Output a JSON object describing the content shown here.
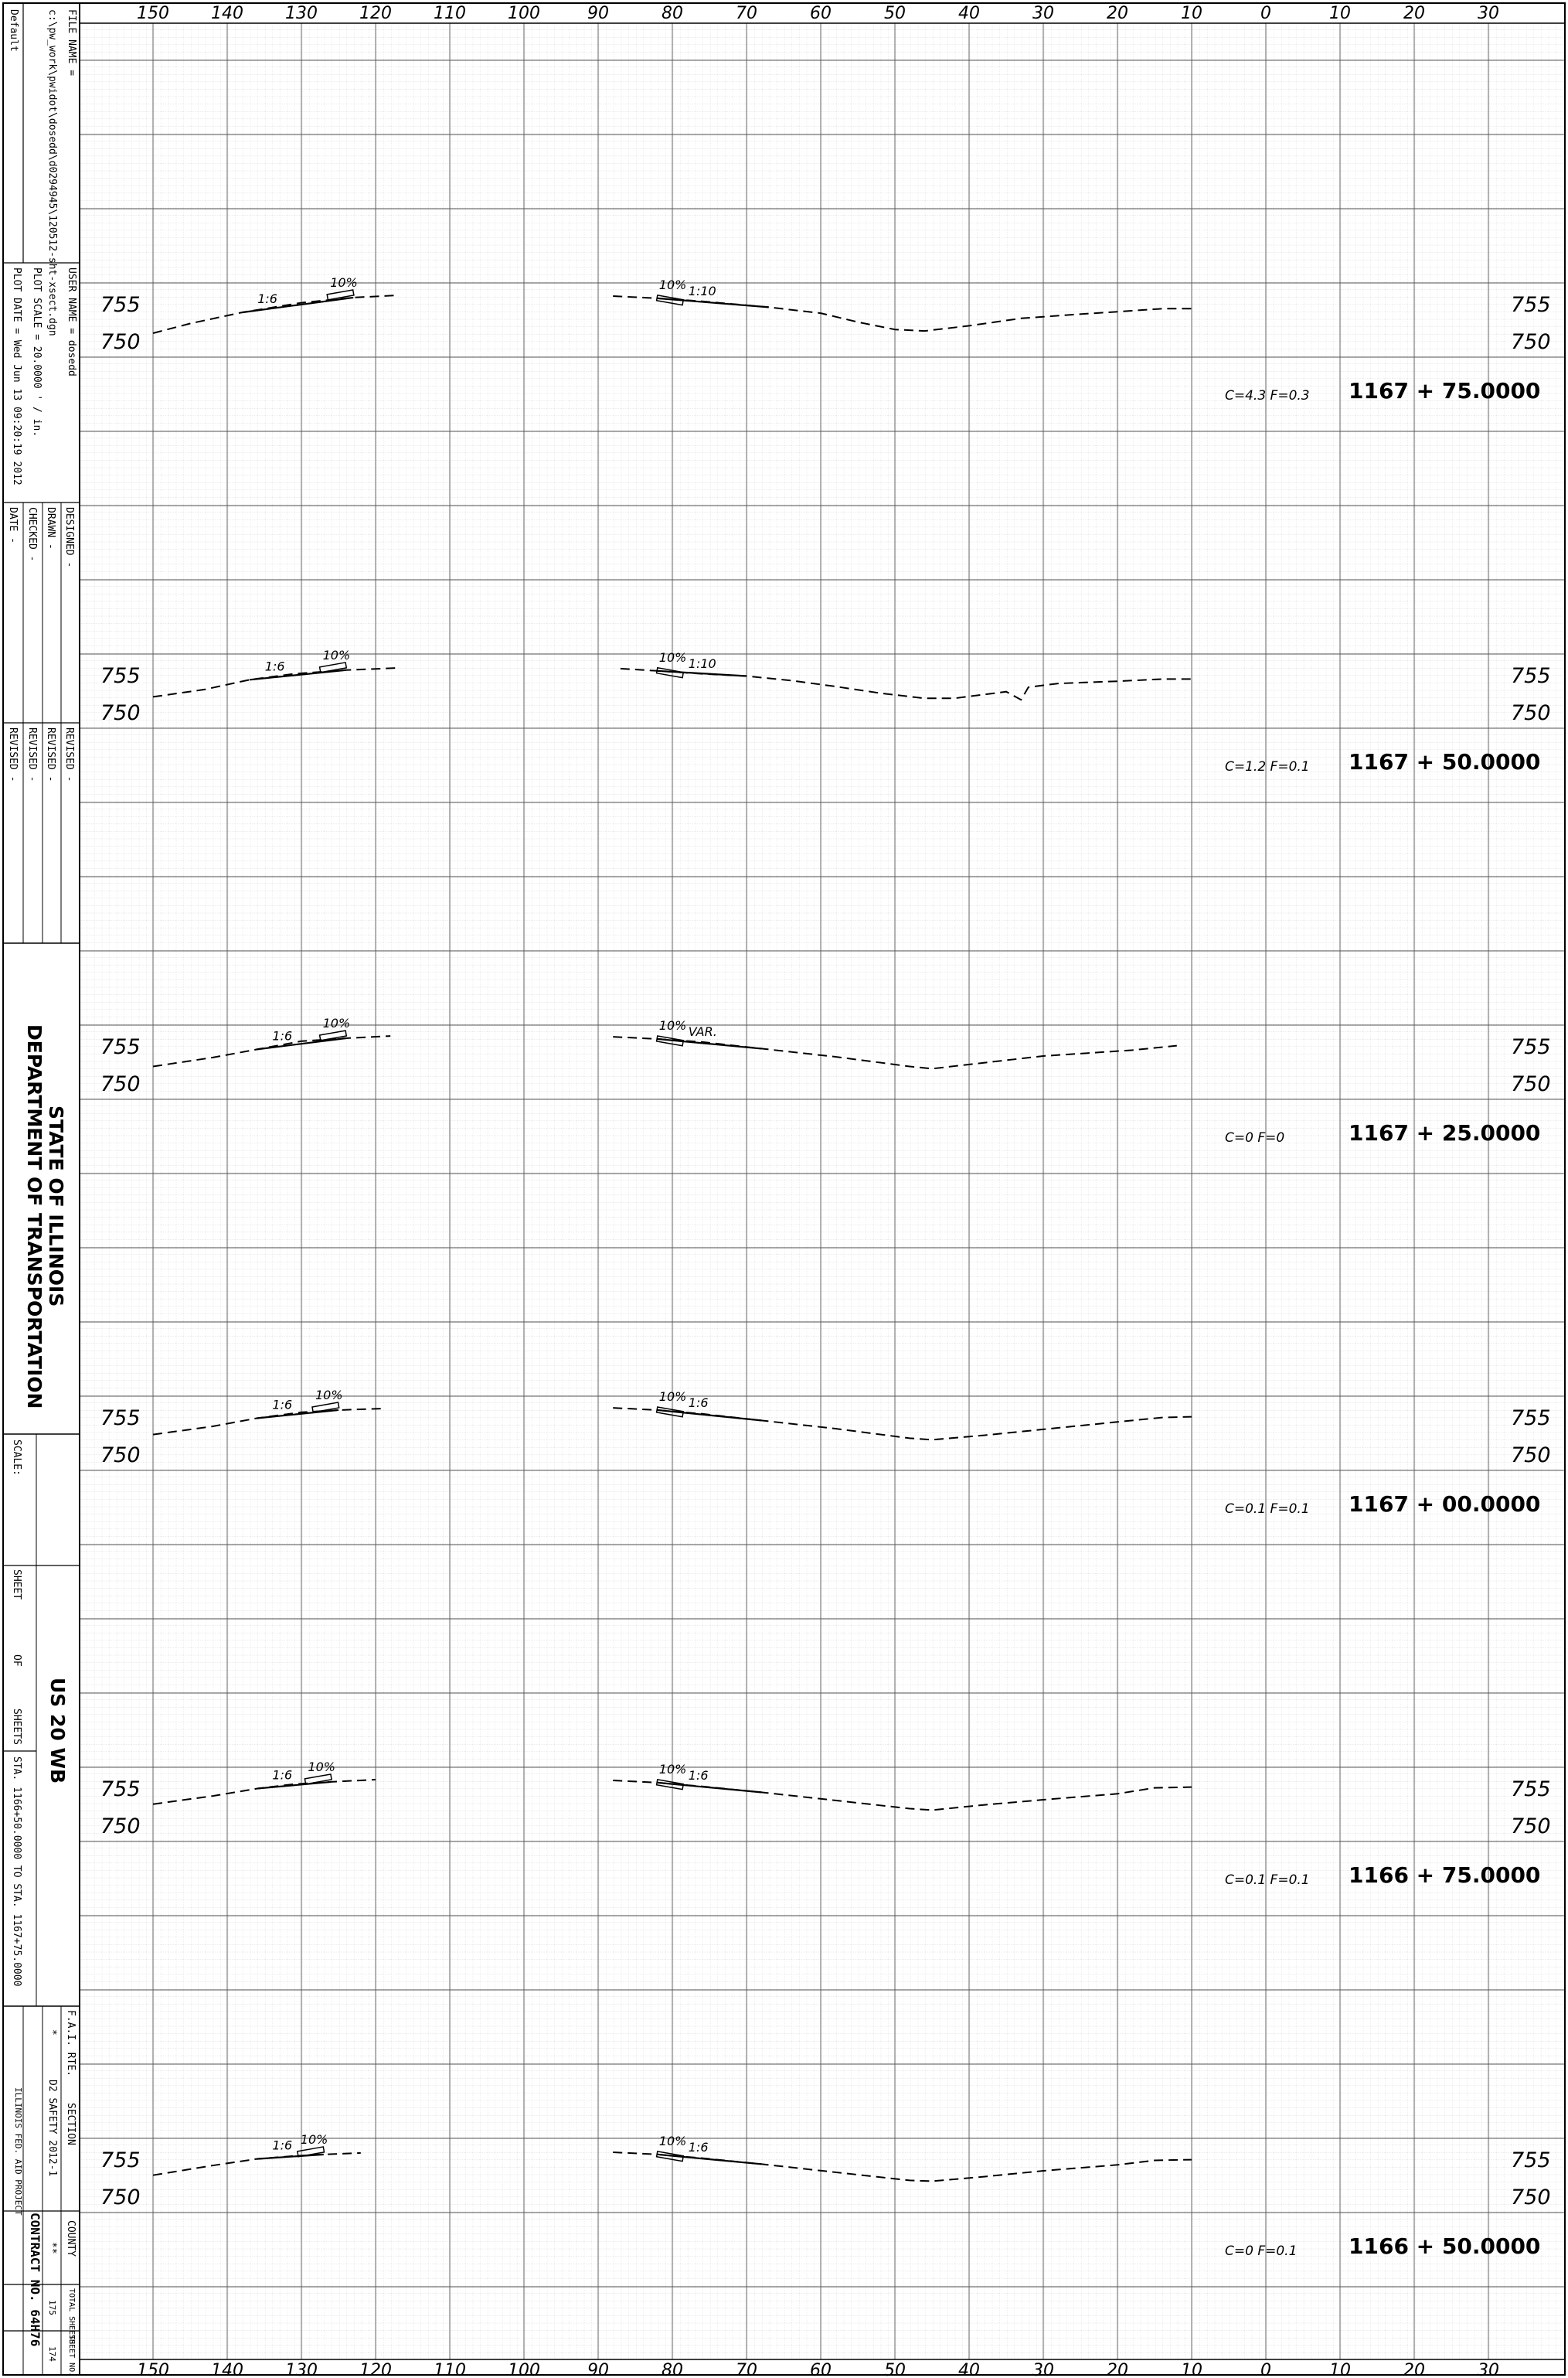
{
  "title_block": {
    "file_name_label": "FILE NAME =",
    "file_name_value": "c:\\pw_work\\pwidot\\dosedd\\d0294945\\120512-sht-xsect.dgn",
    "user_name_label": "USER NAME = dosedd",
    "plot_scale_label": "PLOT SCALE = 20.0000 ' / in.",
    "plot_date_label": "PLOT DATE = Wed Jun 13 09:20:19 2012",
    "default_label": "Default",
    "designed_label": "DESIGNED -",
    "drawn_label": "DRAWN -",
    "checked_label": "CHECKED -",
    "date_label": "DATE -",
    "revised_labels": [
      "REVISED -",
      "REVISED -",
      "REVISED -",
      "REVISED -"
    ],
    "agency_line1": "STATE OF ILLINOIS",
    "agency_line2": "DEPARTMENT OF TRANSPORTATION",
    "scale_label": "SCALE:",
    "sheet_label": "SHEET",
    "of_label": "OF",
    "sheets_label": "SHEETS",
    "sta_range": "STA. 1166+50.0000 TO STA. 1167+75.0000",
    "route_title": "US 20 WB",
    "fa_rte_label": "F.A.I. RTE.",
    "fa_rte_value": "*",
    "section_label": "SECTION",
    "section_value": "D2 SAFETY 2012-1",
    "county_label": "COUNTY",
    "county_value": "**",
    "total_sheets_label": "TOTAL SHEETS",
    "total_sheets_value": "175",
    "sheet_no_label": "SHEET NO.",
    "sheet_no_value": "174",
    "contract_label": "CONTRACT NO. 64H76",
    "project_label": "ILLINOIS FED. AID PROJECT"
  },
  "axis": {
    "ticks": [
      "150",
      "140",
      "130",
      "120",
      "110",
      "100",
      "90",
      "80",
      "70",
      "60",
      "50",
      "40",
      "30",
      "20",
      "10",
      "0",
      "10",
      "20",
      "30"
    ]
  },
  "chart_data": {
    "type": "line",
    "x_range": [
      -150,
      30
    ],
    "x_direction": "left offsets shown on the left, right offsets on the right of centerline 0",
    "sections": [
      {
        "station": "1167+75.0000",
        "cut_fill": "C=4.3   F=0.3",
        "elev_labels": [
          "755",
          "750"
        ],
        "left_slope_labels": [
          "1:6",
          "10%"
        ],
        "right_slope_labels": [
          "10%",
          "1:10"
        ],
        "left_profile": [
          [
            -150,
            752.5
          ],
          [
            -145,
            753.8
          ],
          [
            -138,
            755.3
          ],
          [
            -130,
            756.6
          ],
          [
            -123,
            757.3
          ],
          [
            -117,
            757.6
          ]
        ],
        "right_profile": [
          [
            -88,
            757.5
          ],
          [
            -82,
            757.2
          ],
          [
            -76,
            756.8
          ],
          [
            -67,
            756.0
          ],
          [
            -60,
            755.2
          ],
          [
            -55,
            754.0
          ],
          [
            -50,
            753.0
          ],
          [
            -46,
            752.8
          ],
          [
            -40,
            753.5
          ],
          [
            -33,
            754.5
          ],
          [
            -26,
            755.0
          ],
          [
            -20,
            755.4
          ],
          [
            -14,
            755.8
          ],
          [
            -10,
            755.8
          ]
        ]
      },
      {
        "station": "1167+50.0000",
        "cut_fill": "C=1.2   F=0.1",
        "elev_labels": [
          "755",
          "750"
        ],
        "left_slope_labels": [
          "1:6",
          "10%"
        ],
        "right_slope_labels": [
          "10%",
          "1:10"
        ],
        "left_profile": [
          [
            -150,
            753.5
          ],
          [
            -143,
            754.5
          ],
          [
            -137,
            755.8
          ],
          [
            -131,
            756.6
          ],
          [
            -124,
            757.1
          ],
          [
            -117,
            757.4
          ]
        ],
        "right_profile": [
          [
            -87,
            757.3
          ],
          [
            -82,
            757.0
          ],
          [
            -76,
            756.6
          ],
          [
            -70,
            756.3
          ],
          [
            -64,
            755.7
          ],
          [
            -58,
            754.9
          ],
          [
            -52,
            754.0
          ],
          [
            -46,
            753.3
          ],
          [
            -42,
            753.3
          ],
          [
            -35,
            754.2
          ],
          [
            -33,
            753.1
          ],
          [
            -32,
            754.8
          ],
          [
            -28,
            755.3
          ],
          [
            -20,
            755.6
          ],
          [
            -14,
            755.9
          ],
          [
            -10,
            755.9
          ]
        ]
      },
      {
        "station": "1167+25.0000",
        "cut_fill": "C=0   F=0",
        "elev_labels": [
          "755",
          "750"
        ],
        "left_slope_labels": [
          "1:6",
          "10%"
        ],
        "right_slope_labels": [
          "10%",
          "VAR."
        ],
        "left_profile": [
          [
            -150,
            753.7
          ],
          [
            -142,
            754.9
          ],
          [
            -136,
            756.0
          ],
          [
            -130,
            757.1
          ],
          [
            -124,
            757.5
          ],
          [
            -118,
            757.8
          ]
        ],
        "right_profile": [
          [
            -88,
            757.7
          ],
          [
            -82,
            757.4
          ],
          [
            -76,
            757.0
          ],
          [
            -68,
            756.1
          ],
          [
            -58,
            755.0
          ],
          [
            -48,
            753.7
          ],
          [
            -45,
            753.4
          ],
          [
            -38,
            754.2
          ],
          [
            -30,
            755.1
          ],
          [
            -24,
            755.5
          ],
          [
            -18,
            755.9
          ],
          [
            -12,
            756.5
          ]
        ]
      },
      {
        "station": "1167+00.0000",
        "cut_fill": "C=0.1   F=0.1",
        "elev_labels": [
          "755",
          "750"
        ],
        "left_slope_labels": [
          "1:6",
          "10%"
        ],
        "right_slope_labels": [
          "10%",
          "1:6"
        ],
        "left_profile": [
          [
            -150,
            754.1
          ],
          [
            -142,
            755.2
          ],
          [
            -136,
            756.3
          ],
          [
            -130,
            757.1
          ],
          [
            -125,
            757.4
          ],
          [
            -119,
            757.6
          ]
        ],
        "right_profile": [
          [
            -88,
            757.7
          ],
          [
            -82,
            757.4
          ],
          [
            -76,
            756.9
          ],
          [
            -68,
            756.0
          ],
          [
            -58,
            754.9
          ],
          [
            -48,
            753.6
          ],
          [
            -45,
            753.4
          ],
          [
            -38,
            754.0
          ],
          [
            -30,
            754.8
          ],
          [
            -20,
            755.8
          ],
          [
            -14,
            756.4
          ],
          [
            -10,
            756.5
          ]
        ]
      },
      {
        "station": "1166+75.0000",
        "cut_fill": "C=0.1   F=0.1",
        "elev_labels": [
          "755",
          "750"
        ],
        "left_slope_labels": [
          "1:6",
          "10%"
        ],
        "right_slope_labels": [
          "10%",
          "1:6"
        ],
        "left_profile": [
          [
            -150,
            754.3
          ],
          [
            -142,
            755.4
          ],
          [
            -136,
            756.4
          ],
          [
            -131,
            757.0
          ],
          [
            -126,
            757.3
          ],
          [
            -120,
            757.6
          ]
        ],
        "right_profile": [
          [
            -88,
            757.5
          ],
          [
            -82,
            757.2
          ],
          [
            -76,
            756.7
          ],
          [
            -68,
            755.9
          ],
          [
            -58,
            754.8
          ],
          [
            -48,
            753.7
          ],
          [
            -45,
            753.5
          ],
          [
            -38,
            754.2
          ],
          [
            -30,
            754.9
          ],
          [
            -20,
            755.7
          ],
          [
            -15,
            756.5
          ],
          [
            -10,
            756.6
          ]
        ]
      },
      {
        "station": "1166+50.0000",
        "cut_fill": "C=0   F=0.1",
        "elev_labels": [
          "755",
          "750"
        ],
        "left_slope_labels": [
          "1:6",
          "10%"
        ],
        "right_slope_labels": [
          "10%",
          "1:6"
        ],
        "left_profile": [
          [
            -150,
            754.3
          ],
          [
            -142,
            755.6
          ],
          [
            -136,
            756.5
          ],
          [
            -131,
            756.9
          ],
          [
            -127,
            757.1
          ],
          [
            -122,
            757.3
          ]
        ],
        "right_profile": [
          [
            -88,
            757.4
          ],
          [
            -82,
            757.1
          ],
          [
            -76,
            756.6
          ],
          [
            -68,
            755.8
          ],
          [
            -58,
            754.7
          ],
          [
            -48,
            753.6
          ],
          [
            -45,
            753.5
          ],
          [
            -38,
            754.1
          ],
          [
            -30,
            754.9
          ],
          [
            -20,
            755.7
          ],
          [
            -15,
            756.3
          ],
          [
            -10,
            756.4
          ]
        ]
      }
    ]
  }
}
